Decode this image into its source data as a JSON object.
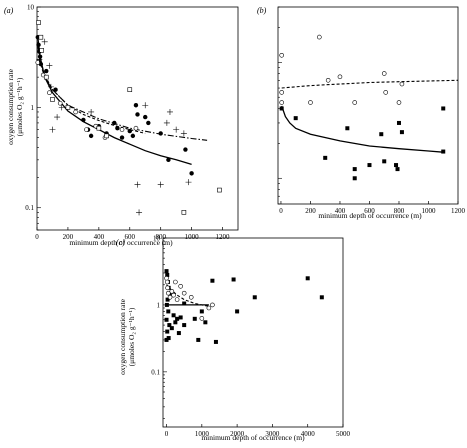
{
  "figure": {
    "ylabel_line1": "oxygen consumption rate",
    "ylabel_line2": "(μmoles O₂ g⁻¹h⁻¹)"
  },
  "chart_data": [
    {
      "panel_label": "(a)",
      "type": "scatter",
      "xlabel": "minimum depth of occurrence (m)",
      "ylabel": "oxygen consumption rate (μmoles O₂ g⁻¹h⁻¹)",
      "xlim": [
        0,
        1300
      ],
      "ylim": [
        0.06,
        10
      ],
      "yscale": "log",
      "xticks": [
        0,
        200,
        400,
        600,
        800,
        1000,
        1200
      ],
      "yticks": [
        {
          "v": 0.1,
          "label": "0.1"
        },
        {
          "v": 1,
          "label": "1"
        },
        {
          "v": 10,
          "label": "10"
        }
      ],
      "series": [
        {
          "marker": "filled-circle",
          "points": [
            [
              5,
              5.0
            ],
            [
              10,
              4.2
            ],
            [
              15,
              3.6
            ],
            [
              20,
              3.2
            ],
            [
              25,
              2.7
            ],
            [
              60,
              2.3
            ],
            [
              120,
              1.5
            ],
            [
              300,
              0.75
            ],
            [
              330,
              0.6
            ],
            [
              350,
              0.52
            ],
            [
              400,
              0.65
            ],
            [
              450,
              0.55
            ],
            [
              500,
              0.7
            ],
            [
              520,
              0.62
            ],
            [
              550,
              0.5
            ],
            [
              600,
              0.58
            ],
            [
              620,
              0.52
            ],
            [
              640,
              1.05
            ],
            [
              650,
              0.85
            ],
            [
              700,
              0.8
            ],
            [
              720,
              0.7
            ],
            [
              800,
              0.55
            ],
            [
              850,
              0.3
            ],
            [
              960,
              0.38
            ],
            [
              1000,
              0.22
            ]
          ]
        },
        {
          "marker": "open-circle",
          "points": [
            [
              5,
              2.8
            ],
            [
              40,
              2.1
            ],
            [
              80,
              1.4
            ],
            [
              150,
              1.1
            ],
            [
              250,
              0.9
            ],
            [
              320,
              0.6
            ],
            [
              380,
              0.65
            ],
            [
              440,
              0.5
            ],
            [
              550,
              0.6
            ],
            [
              640,
              0.62
            ]
          ]
        },
        {
          "marker": "open-square",
          "points": [
            [
              10,
              7.0
            ],
            [
              25,
              5.0
            ],
            [
              30,
              3.7
            ],
            [
              60,
              2.0
            ],
            [
              100,
              1.2
            ],
            [
              200,
              1.0
            ],
            [
              400,
              0.62
            ],
            [
              450,
              0.52
            ],
            [
              600,
              1.5
            ],
            [
              950,
              0.09
            ],
            [
              1180,
              0.15
            ]
          ]
        },
        {
          "marker": "plus",
          "points": [
            [
              15,
              3.0
            ],
            [
              50,
              4.5
            ],
            [
              80,
              2.6
            ],
            [
              90,
              1.6
            ],
            [
              100,
              0.6
            ],
            [
              130,
              0.8
            ],
            [
              160,
              1.0
            ],
            [
              350,
              0.9
            ],
            [
              700,
              1.05
            ],
            [
              800,
              0.17
            ],
            [
              840,
              0.7
            ],
            [
              860,
              0.9
            ],
            [
              900,
              0.6
            ],
            [
              950,
              0.55
            ],
            [
              980,
              0.18
            ],
            [
              650,
              0.17
            ],
            [
              660,
              0.09
            ]
          ]
        }
      ],
      "fits": [
        {
          "style": "solid",
          "points": [
            [
              5,
              5.0
            ],
            [
              20,
              3.2
            ],
            [
              50,
              2.0
            ],
            [
              100,
              1.4
            ],
            [
              200,
              0.92
            ],
            [
              300,
              0.72
            ],
            [
              400,
              0.6
            ],
            [
              500,
              0.5
            ],
            [
              600,
              0.43
            ],
            [
              700,
              0.37
            ],
            [
              800,
              0.33
            ],
            [
              900,
              0.3
            ],
            [
              1000,
              0.27
            ]
          ]
        },
        {
          "style": "dashed",
          "points": [
            [
              5,
              4.5
            ],
            [
              20,
              3.0
            ],
            [
              50,
              2.1
            ],
            [
              100,
              1.5
            ],
            [
              200,
              1.05
            ],
            [
              300,
              0.85
            ],
            [
              400,
              0.74
            ],
            [
              500,
              0.66
            ],
            [
              600,
              0.6
            ],
            [
              700,
              0.55
            ]
          ]
        },
        {
          "style": "dash-dot",
          "points": [
            [
              5,
              4.0
            ],
            [
              20,
              2.8
            ],
            [
              50,
              2.0
            ],
            [
              100,
              1.5
            ],
            [
              200,
              1.05
            ],
            [
              400,
              0.77
            ],
            [
              600,
              0.62
            ],
            [
              800,
              0.54
            ],
            [
              1000,
              0.49
            ],
            [
              1100,
              0.47
            ]
          ]
        }
      ]
    },
    {
      "panel_label": "(b)",
      "type": "scatter",
      "xlabel": "minimum depth of occurrence (m)",
      "ylabel": "",
      "xlim": [
        -20,
        1200
      ],
      "ylim": [
        0.06,
        3.0
      ],
      "yscale": "log",
      "xticks": [
        0,
        200,
        400,
        600,
        800,
        1000,
        1200
      ],
      "yticks": [],
      "series": [
        {
          "marker": "filled-square",
          "points": [
            [
              5,
              0.4
            ],
            [
              100,
              0.33
            ],
            [
              300,
              0.15
            ],
            [
              450,
              0.27
            ],
            [
              500,
              0.12
            ],
            [
              500,
              0.1
            ],
            [
              600,
              0.13
            ],
            [
              680,
              0.24
            ],
            [
              700,
              0.14
            ],
            [
              780,
              0.13
            ],
            [
              790,
              0.12
            ],
            [
              800,
              0.3
            ],
            [
              820,
              0.25
            ],
            [
              1100,
              0.17
            ],
            [
              1100,
              0.4
            ]
          ]
        },
        {
          "marker": "open-circle",
          "points": [
            [
              5,
              1.15
            ],
            [
              5,
              0.55
            ],
            [
              5,
              0.45
            ],
            [
              200,
              0.45
            ],
            [
              260,
              1.65
            ],
            [
              320,
              0.7
            ],
            [
              400,
              0.75
            ],
            [
              500,
              0.45
            ],
            [
              700,
              0.8
            ],
            [
              710,
              0.55
            ],
            [
              800,
              0.45
            ],
            [
              820,
              0.65
            ]
          ]
        }
      ],
      "fits": [
        {
          "style": "dashed",
          "points": [
            [
              5,
              0.6
            ],
            [
              200,
              0.63
            ],
            [
              400,
              0.65
            ],
            [
              600,
              0.67
            ],
            [
              800,
              0.68
            ],
            [
              1000,
              0.69
            ],
            [
              1200,
              0.7
            ]
          ]
        },
        {
          "style": "solid",
          "points": [
            [
              5,
              0.42
            ],
            [
              30,
              0.34
            ],
            [
              60,
              0.3
            ],
            [
              100,
              0.27
            ],
            [
              200,
              0.24
            ],
            [
              400,
              0.21
            ],
            [
              600,
              0.19
            ],
            [
              800,
              0.18
            ],
            [
              1000,
              0.172
            ],
            [
              1100,
              0.168
            ]
          ]
        }
      ]
    },
    {
      "panel_label": "(c)",
      "type": "scatter",
      "xlabel": "minimum depth of occurrence (m)",
      "ylabel": "oxygen consumption rate (μmoles O₂ g⁻¹h⁻¹)",
      "xlim": [
        -100,
        5000
      ],
      "ylim": [
        0.015,
        10
      ],
      "yscale": "log",
      "xticks": [
        0,
        1000,
        2000,
        3000,
        4000,
        5000
      ],
      "yticks": [
        {
          "v": 0.1,
          "label": "0.1"
        },
        {
          "v": 1,
          "label": "1"
        },
        {
          "v": 10,
          "label": "10"
        }
      ],
      "series": [
        {
          "marker": "filled-square",
          "points": [
            [
              0,
              3.2
            ],
            [
              20,
              2.8
            ],
            [
              40,
              2.2
            ],
            [
              60,
              1.8
            ],
            [
              80,
              1.5
            ],
            [
              30,
              1.2
            ],
            [
              10,
              1.0
            ],
            [
              50,
              0.8
            ],
            [
              0,
              0.6
            ],
            [
              80,
              0.5
            ],
            [
              20,
              0.4
            ],
            [
              0,
              0.3
            ],
            [
              60,
              0.32
            ],
            [
              150,
              0.45
            ],
            [
              200,
              0.7
            ],
            [
              250,
              0.55
            ],
            [
              300,
              0.62
            ],
            [
              350,
              0.38
            ],
            [
              400,
              0.65
            ],
            [
              500,
              0.5
            ],
            [
              500,
              1.05
            ],
            [
              800,
              0.62
            ],
            [
              900,
              0.3
            ],
            [
              1000,
              0.8
            ],
            [
              1100,
              0.55
            ],
            [
              1400,
              0.28
            ],
            [
              1300,
              2.3
            ],
            [
              1900,
              2.4
            ],
            [
              2000,
              0.8
            ],
            [
              2500,
              1.3
            ],
            [
              4000,
              2.5
            ],
            [
              4400,
              1.3
            ]
          ]
        },
        {
          "marker": "open-circle",
          "points": [
            [
              0,
              2.5
            ],
            [
              20,
              2.2
            ],
            [
              30,
              1.8
            ],
            [
              50,
              1.5
            ],
            [
              100,
              1.3
            ],
            [
              150,
              1.6
            ],
            [
              200,
              1.4
            ],
            [
              250,
              2.2
            ],
            [
              300,
              1.2
            ],
            [
              400,
              1.9
            ],
            [
              500,
              1.5
            ],
            [
              700,
              1.3
            ],
            [
              1000,
              0.63
            ],
            [
              1300,
              1.0
            ],
            [
              1200,
              0.9
            ]
          ]
        }
      ],
      "fits": [
        {
          "style": "solid",
          "points": [
            [
              0,
              1.0
            ],
            [
              1200,
              1.0
            ]
          ]
        },
        {
          "style": "dashed",
          "points": [
            [
              0,
              2.0
            ],
            [
              100,
              1.75
            ],
            [
              300,
              1.4
            ],
            [
              500,
              1.2
            ],
            [
              800,
              1.05
            ],
            [
              1200,
              0.95
            ]
          ]
        }
      ]
    }
  ]
}
